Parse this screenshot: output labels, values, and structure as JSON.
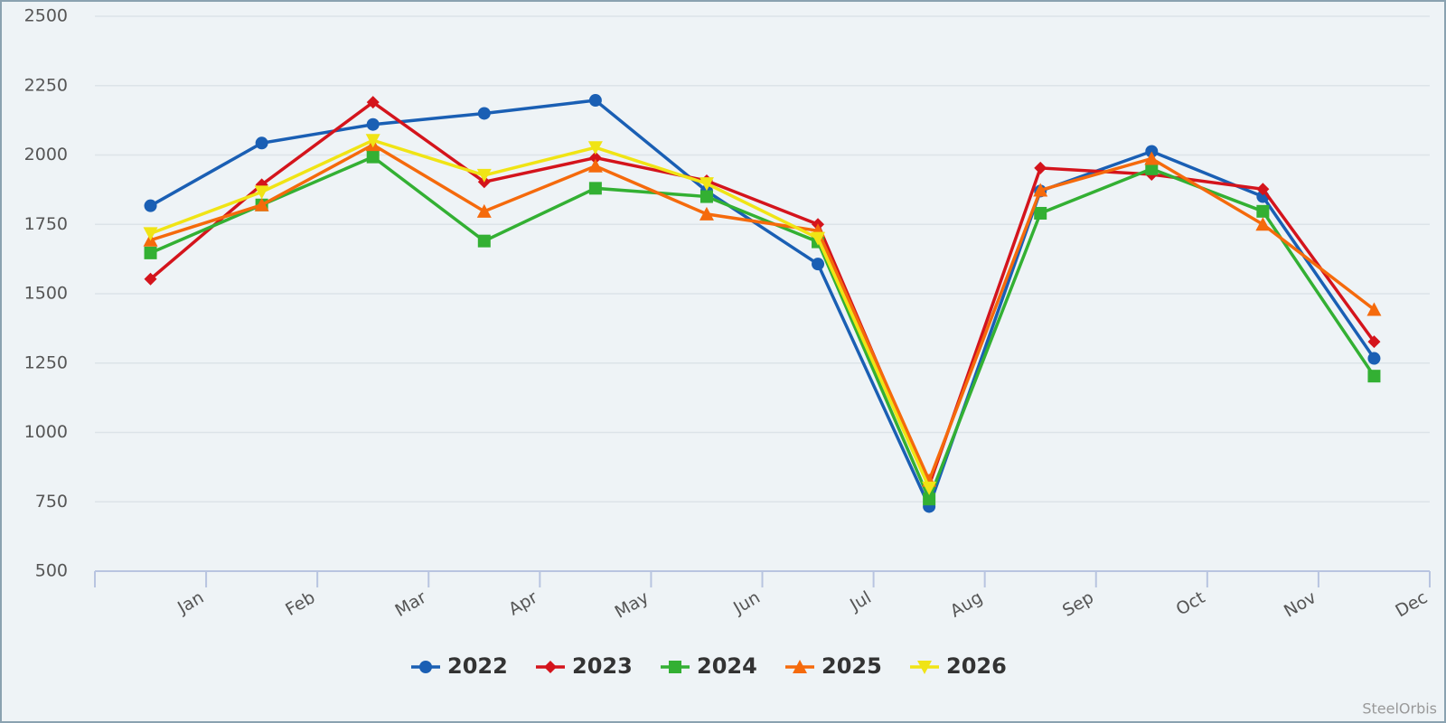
{
  "chart_data": {
    "type": "line",
    "categories": [
      "Jan",
      "Feb",
      "Mar",
      "Apr",
      "May",
      "Jun",
      "Jul",
      "Aug",
      "Sep",
      "Oct",
      "Nov",
      "Dec"
    ],
    "ylim": [
      500,
      2500
    ],
    "yticks": [
      500,
      750,
      1000,
      1250,
      1500,
      1750,
      2000,
      2250,
      2500
    ],
    "grid": true,
    "legend": "bottom",
    "credit": "SteelOrbis",
    "series": [
      {
        "name": "2022",
        "color": "#1a5fb4",
        "marker": "circle",
        "values": [
          1817,
          2043,
          2110,
          2150,
          2197,
          1870,
          1607,
          733,
          1870,
          2013,
          1850,
          1267
        ]
      },
      {
        "name": "2023",
        "color": "#d4141c",
        "marker": "diamond",
        "values": [
          1553,
          1893,
          2190,
          1903,
          1990,
          1907,
          1750,
          810,
          1953,
          1930,
          1877,
          1327
        ]
      },
      {
        "name": "2024",
        "color": "#33b033",
        "marker": "square",
        "values": [
          1647,
          1820,
          1993,
          1690,
          1880,
          1850,
          1687,
          760,
          1790,
          1950,
          1797,
          1203
        ]
      },
      {
        "name": "2025",
        "color": "#f56a0c",
        "marker": "triangle",
        "values": [
          1693,
          1820,
          2037,
          1797,
          1960,
          1787,
          1727,
          827,
          1873,
          1987,
          1750,
          1443
        ]
      },
      {
        "name": "2026",
        "color": "#f0e415",
        "marker": "triangle-down",
        "values": [
          1717,
          1867,
          2053,
          1927,
          2027,
          1897,
          1700,
          800,
          null,
          null,
          null,
          null
        ]
      }
    ]
  }
}
